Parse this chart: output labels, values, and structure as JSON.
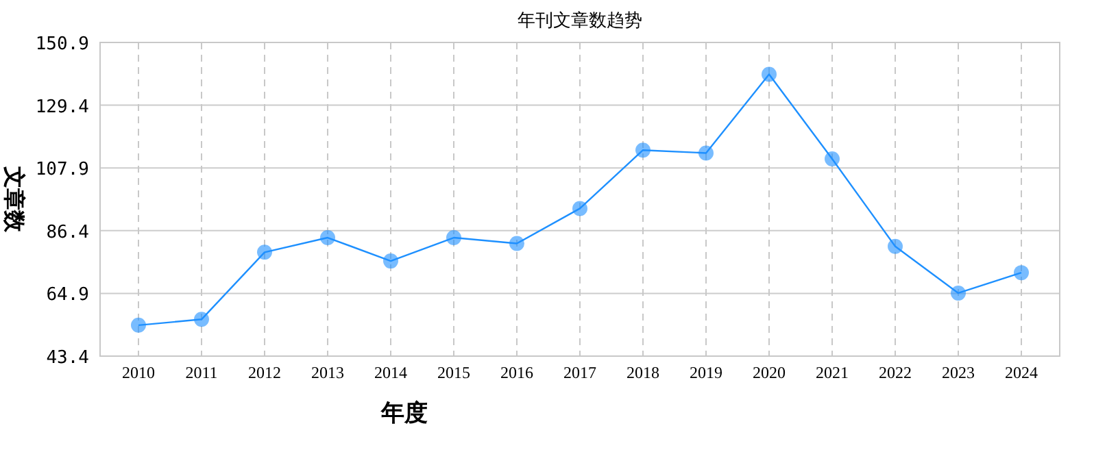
{
  "chart_data": {
    "type": "line",
    "title": "年刊文章数趋势",
    "xlabel": "年度",
    "ylabel": "文章数",
    "categories": [
      "2010",
      "2011",
      "2012",
      "2013",
      "2014",
      "2015",
      "2016",
      "2017",
      "2018",
      "2019",
      "2020",
      "2021",
      "2022",
      "2023",
      "2024"
    ],
    "values": [
      54,
      56,
      79,
      84,
      76,
      84,
      82,
      94,
      114,
      113,
      140,
      111,
      81,
      65,
      72
    ],
    "color": "#1e90ff",
    "ylim": [
      43.4,
      150.9
    ],
    "yticks": [
      43.4,
      64.9,
      86.4,
      107.9,
      129.4,
      150.9
    ],
    "grid": true,
    "marker": "circle",
    "line_style": "solid"
  }
}
